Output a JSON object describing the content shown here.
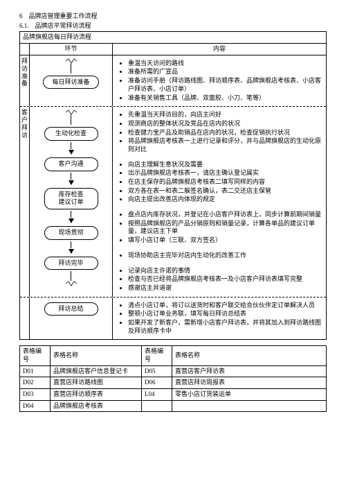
{
  "headers": {
    "h1": "6　品牌店管理重要工作流程",
    "h2": "6.1.　品牌店平常拜访流程",
    "title": "品牌旗舰店每日拜访流程"
  },
  "col_headers": {
    "stage": "环节",
    "content": "内容"
  },
  "sections": [
    {
      "side": "拜访准备",
      "nodes": [
        "每日拜访准备"
      ],
      "wave_top": true,
      "items": [
        "重温当天访问的路线",
        "准备所需的广宣品",
        "准备访问手册（拜访路线图、拜访顺序表、品牌旗舰店考核表、小店客户拜访表、小店订单）",
        "准备有关销售工具（品牌、双面胶、小刀、笔等）"
      ]
    },
    {
      "side": "客户拜访",
      "nodes": [
        "生动化检查",
        "客户沟通",
        "库存检查\n建议订单",
        "现场贯彻",
        "拜访完毕"
      ],
      "wave_top": true,
      "wave_bottom": true,
      "arrows_between": true,
      "groups": [
        [
          "先重温当天拜访目的，向店主问好",
          "观测商店的整体状况及竞品在店内的状况",
          "检查健力宝产品及助销品在店内的状况，检查促销执行状况",
          "将品牌旗舰店考核表一上进行记录和评分，并与品牌旗舰店的生动化原则对比"
        ],
        [
          "向店主理解生意状况及需要",
          "出示品牌旗舰店考核表一，请店主确认登记属实",
          "在店主保存的品牌旗舰店考核表二填写同样的内容",
          "双方各在表一和表二躲签名确认，表二交还店主保管",
          "向店主提出改善店内体现的规定"
        ],
        [
          "盘点店内库存状况，并登记在小店客户拜访表上，同步计算前期间销量",
          "按照品牌旗舰店的产品分销原则和销量记录，计算各单品的建议订单量，建议店主下单",
          "填写小店订单（三联、双方签名）"
        ],
        [
          "现场协助店主完毕对店内生动化的改善工作"
        ],
        [
          "记录向店主许诺的事情",
          "检查与否已经将品牌旗舰店考核表一及小店客户拜访表填写完整",
          "感谢店主并道谢"
        ]
      ]
    },
    {
      "side": "",
      "nodes": [
        "拜访总结"
      ],
      "items": [
        "清点小店订单，将订以送货时和客户联交给合伙伙伴定订单解决人员",
        "整顿小店订单业务联，填写每日拜访总结表",
        "如果开发了新客户，需新增小店客户拜访表，并将其加入到拜访路线图及拜访顺序卡中"
      ]
    }
  ],
  "form": {
    "head": [
      "表格编号",
      "表格名称",
      "表格编号",
      "表格名称"
    ],
    "rows": [
      [
        "D01",
        "品牌旗舰店客户信息登记卡",
        "D05",
        "直营店客户拜访表"
      ],
      [
        "D02",
        "直营店拜访路线图",
        "D06",
        "直营店拜访周报表"
      ],
      [
        "D03",
        "直营店拜访顺序表",
        "L04",
        "零售小店订货装运单"
      ],
      [
        "D04",
        "品牌旗舰店考核表",
        "",
        ""
      ]
    ]
  }
}
